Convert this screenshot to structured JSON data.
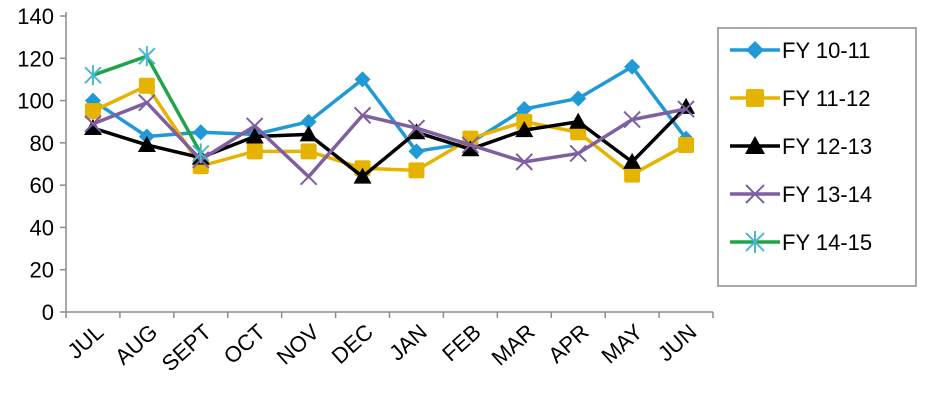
{
  "chart_data": {
    "type": "line",
    "title": "",
    "xlabel": "",
    "ylabel": "",
    "ylim": [
      0,
      140
    ],
    "yticks": [
      0,
      20,
      40,
      60,
      80,
      100,
      120,
      140
    ],
    "ytick_labels": [
      "0",
      "20",
      "40",
      "60",
      "80",
      "100",
      "120",
      "140"
    ],
    "grid": false,
    "legend_position": "right",
    "categories": [
      "JUL",
      "AUG",
      "SEPT",
      "OCT",
      "NOV",
      "DEC",
      "JAN",
      "FEB",
      "MAR",
      "APR",
      "MAY",
      "JUN"
    ],
    "series": [
      {
        "name": "FY 10-11",
        "color": "#1f9ad6",
        "marker": "diamond",
        "values": [
          100,
          83,
          85,
          84,
          90,
          110,
          76,
          80,
          96,
          101,
          116,
          82
        ]
      },
      {
        "name": "FY 11-12",
        "color": "#e6b400",
        "marker": "square",
        "values": [
          95,
          107,
          69,
          76,
          76,
          68,
          67,
          82,
          90,
          85,
          65,
          79
        ]
      },
      {
        "name": "FY 12-13",
        "color": "#000000",
        "marker": "triangle",
        "values": [
          87,
          79,
          73,
          83,
          84,
          64,
          85,
          77,
          86,
          90,
          71,
          97
        ]
      },
      {
        "name": "FY 13-14",
        "color": "#7e5fa0",
        "marker": "x",
        "values": [
          89,
          99,
          72,
          88,
          64,
          93,
          87,
          79,
          71,
          75,
          91,
          96
        ]
      },
      {
        "name": "FY 14-15",
        "color": "#22a34a",
        "marker_color": "#4bb8cf",
        "marker": "asterisk",
        "values": [
          112,
          121,
          75,
          null,
          null,
          null,
          null,
          null,
          null,
          null,
          null,
          null
        ]
      }
    ]
  }
}
